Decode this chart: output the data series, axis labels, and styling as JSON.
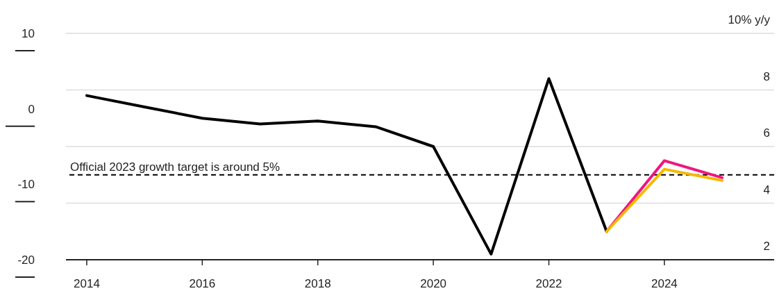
{
  "chart_data": {
    "type": "line",
    "series": [
      {
        "color": "#000000",
        "x": [
          2014,
          2015,
          2016,
          2017,
          2018,
          2019,
          2020,
          2021,
          2022,
          2023
        ],
        "values": [
          7.8,
          7.4,
          7.0,
          6.8,
          6.9,
          6.7,
          6.0,
          2.2,
          8.4,
          3.0
        ]
      },
      {
        "color": "#f0157f",
        "x": [
          2023,
          2024,
          2025
        ],
        "values": [
          3.0,
          5.5,
          4.9
        ]
      },
      {
        "color": "#f5b800",
        "x": [
          2023,
          2024,
          2025
        ],
        "values": [
          3.0,
          5.2,
          4.8
        ]
      }
    ],
    "xlim": [
      2013.64,
      2025.9
    ],
    "xticks": [
      2014,
      2016,
      2018,
      2020,
      2022,
      2024
    ],
    "ylim": [
      2,
      10
    ],
    "yticks": [
      2,
      4,
      6,
      8,
      {
        "value": 10,
        "label": "10% y/y"
      }
    ],
    "y2lim": [
      -20,
      10
    ],
    "y2ticks": [
      10,
      0,
      -10,
      -20
    ],
    "ref_lines": [
      {
        "axis": "y",
        "value": 5,
        "label": "Official 2023 growth target is around 5%",
        "color": "#000000",
        "line_style": "dashed"
      }
    ],
    "grid": "y",
    "legend": false,
    "marker": "none",
    "line_style": "solid"
  }
}
